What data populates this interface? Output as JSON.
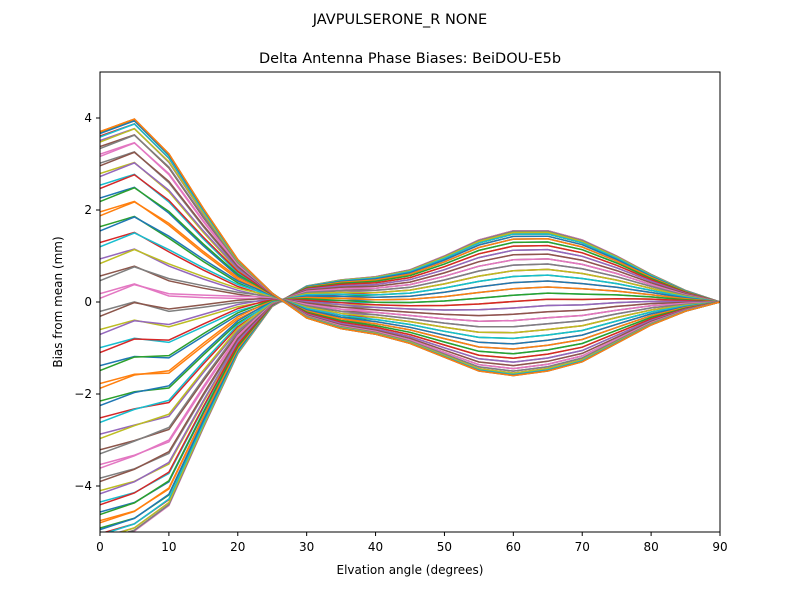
{
  "figure": {
    "suptitle": "JAVPULSERONE_R  NONE"
  },
  "chart_data": {
    "type": "line",
    "title": "Delta Antenna Phase Biases: BeiDOU-E5b",
    "xlabel": "Elvation angle (degrees)",
    "ylabel": "Bias from mean (mm)",
    "xlim": [
      0,
      90
    ],
    "ylim": [
      -5,
      5
    ],
    "xticks": [
      0,
      10,
      20,
      30,
      40,
      50,
      60,
      70,
      80,
      90
    ],
    "yticks": [
      -4,
      -2,
      0,
      2,
      4
    ],
    "grid": false,
    "legend": "none",
    "x": [
      0,
      5,
      10,
      15,
      20,
      25,
      30,
      35,
      40,
      45,
      50,
      55,
      60,
      65,
      70,
      75,
      80,
      85,
      90
    ],
    "series_count": 72,
    "series_colors": [
      "#1f77b4",
      "#ff7f0e",
      "#2ca02c",
      "#d62728",
      "#9467bd",
      "#8c564b",
      "#e377c2",
      "#7f7f7f",
      "#bcbd22",
      "#17becf"
    ],
    "series_shape_note": "Each series is one azimuth line; its values over x are given by amplitude parameters below (mm).",
    "series": [
      {
        "values": [
          3.7,
          3.9,
          3.1,
          1.9,
          0.8,
          0.1,
          -0.4,
          -0.6,
          -0.7,
          -0.9,
          -1.2,
          -1.5,
          -1.6,
          -1.5,
          -1.3,
          -0.9,
          -0.5,
          -0.2,
          0.0
        ]
      },
      {
        "values": [
          -5.2,
          -4.9,
          -4.3,
          -2.6,
          -1.0,
          0.0,
          0.4,
          0.5,
          0.55,
          0.7,
          1.0,
          1.35,
          1.55,
          1.55,
          1.35,
          1.0,
          0.6,
          0.25,
          0.0
        ]
      }
    ]
  }
}
